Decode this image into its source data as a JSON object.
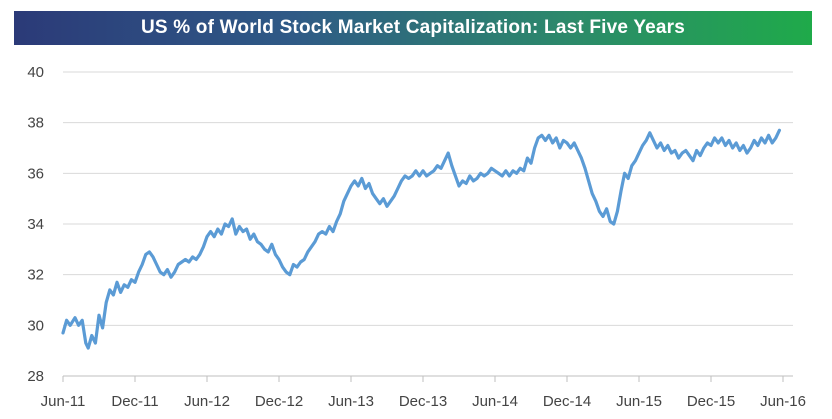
{
  "chart_data": {
    "type": "line",
    "title": "US % of World Stock Market Capitalization: Last Five Years",
    "xlabel": "",
    "ylabel": "",
    "ylim": [
      28,
      40
    ],
    "yticks": [
      28,
      30,
      32,
      34,
      36,
      38,
      40
    ],
    "xticks": [
      "Jun-11",
      "Dec-11",
      "Jun-12",
      "Dec-12",
      "Jun-13",
      "Dec-13",
      "Jun-14",
      "Dec-14",
      "Jun-15",
      "Dec-15",
      "Jun-16"
    ],
    "x_range_months": [
      0,
      60
    ],
    "series": [
      {
        "name": "US % of World Stock Market Capitalization",
        "color": "#5b9bd5",
        "points": [
          [
            0.0,
            29.7
          ],
          [
            0.3,
            30.2
          ],
          [
            0.6,
            30.0
          ],
          [
            1.0,
            30.3
          ],
          [
            1.3,
            30.0
          ],
          [
            1.6,
            30.2
          ],
          [
            1.9,
            29.3
          ],
          [
            2.1,
            29.1
          ],
          [
            2.4,
            29.6
          ],
          [
            2.7,
            29.3
          ],
          [
            3.0,
            30.4
          ],
          [
            3.3,
            29.9
          ],
          [
            3.6,
            30.9
          ],
          [
            3.9,
            31.4
          ],
          [
            4.2,
            31.2
          ],
          [
            4.5,
            31.7
          ],
          [
            4.8,
            31.3
          ],
          [
            5.1,
            31.6
          ],
          [
            5.4,
            31.5
          ],
          [
            5.7,
            31.8
          ],
          [
            6.0,
            31.7
          ],
          [
            6.3,
            32.1
          ],
          [
            6.6,
            32.4
          ],
          [
            6.9,
            32.8
          ],
          [
            7.2,
            32.9
          ],
          [
            7.5,
            32.7
          ],
          [
            7.8,
            32.4
          ],
          [
            8.1,
            32.1
          ],
          [
            8.4,
            32.0
          ],
          [
            8.7,
            32.2
          ],
          [
            9.0,
            31.9
          ],
          [
            9.3,
            32.1
          ],
          [
            9.6,
            32.4
          ],
          [
            9.9,
            32.5
          ],
          [
            10.2,
            32.6
          ],
          [
            10.5,
            32.5
          ],
          [
            10.8,
            32.7
          ],
          [
            11.1,
            32.6
          ],
          [
            11.4,
            32.8
          ],
          [
            11.7,
            33.1
          ],
          [
            12.0,
            33.5
          ],
          [
            12.3,
            33.7
          ],
          [
            12.6,
            33.5
          ],
          [
            12.9,
            33.8
          ],
          [
            13.2,
            33.6
          ],
          [
            13.5,
            34.0
          ],
          [
            13.8,
            33.9
          ],
          [
            14.1,
            34.2
          ],
          [
            14.4,
            33.6
          ],
          [
            14.7,
            33.9
          ],
          [
            15.0,
            33.7
          ],
          [
            15.3,
            33.8
          ],
          [
            15.6,
            33.4
          ],
          [
            15.9,
            33.6
          ],
          [
            16.2,
            33.3
          ],
          [
            16.5,
            33.2
          ],
          [
            16.8,
            33.0
          ],
          [
            17.1,
            32.9
          ],
          [
            17.4,
            33.2
          ],
          [
            17.7,
            32.8
          ],
          [
            18.0,
            32.6
          ],
          [
            18.3,
            32.3
          ],
          [
            18.6,
            32.1
          ],
          [
            18.9,
            32.0
          ],
          [
            19.2,
            32.4
          ],
          [
            19.5,
            32.3
          ],
          [
            19.8,
            32.5
          ],
          [
            20.1,
            32.6
          ],
          [
            20.4,
            32.9
          ],
          [
            20.7,
            33.1
          ],
          [
            21.0,
            33.3
          ],
          [
            21.3,
            33.6
          ],
          [
            21.6,
            33.7
          ],
          [
            21.9,
            33.6
          ],
          [
            22.2,
            33.9
          ],
          [
            22.5,
            33.7
          ],
          [
            22.8,
            34.1
          ],
          [
            23.1,
            34.4
          ],
          [
            23.4,
            34.9
          ],
          [
            23.7,
            35.2
          ],
          [
            24.0,
            35.5
          ],
          [
            24.3,
            35.7
          ],
          [
            24.6,
            35.5
          ],
          [
            24.9,
            35.8
          ],
          [
            25.2,
            35.4
          ],
          [
            25.5,
            35.6
          ],
          [
            25.8,
            35.2
          ],
          [
            26.1,
            35.0
          ],
          [
            26.4,
            34.8
          ],
          [
            26.7,
            35.0
          ],
          [
            27.0,
            34.7
          ],
          [
            27.3,
            34.9
          ],
          [
            27.6,
            35.1
          ],
          [
            27.9,
            35.4
          ],
          [
            28.2,
            35.7
          ],
          [
            28.5,
            35.9
          ],
          [
            28.8,
            35.8
          ],
          [
            29.1,
            35.9
          ],
          [
            29.4,
            36.1
          ],
          [
            29.7,
            35.9
          ],
          [
            30.0,
            36.1
          ],
          [
            30.3,
            35.9
          ],
          [
            30.6,
            36.0
          ],
          [
            30.9,
            36.1
          ],
          [
            31.2,
            36.3
          ],
          [
            31.5,
            36.2
          ],
          [
            31.8,
            36.5
          ],
          [
            32.1,
            36.8
          ],
          [
            32.4,
            36.3
          ],
          [
            32.7,
            35.9
          ],
          [
            33.0,
            35.5
          ],
          [
            33.3,
            35.7
          ],
          [
            33.6,
            35.6
          ],
          [
            33.9,
            35.9
          ],
          [
            34.2,
            35.7
          ],
          [
            34.5,
            35.8
          ],
          [
            34.8,
            36.0
          ],
          [
            35.1,
            35.9
          ],
          [
            35.4,
            36.0
          ],
          [
            35.7,
            36.2
          ],
          [
            36.0,
            36.1
          ],
          [
            36.3,
            36.0
          ],
          [
            36.6,
            35.9
          ],
          [
            36.9,
            36.1
          ],
          [
            37.2,
            35.9
          ],
          [
            37.5,
            36.1
          ],
          [
            37.8,
            36.0
          ],
          [
            38.1,
            36.2
          ],
          [
            38.4,
            36.1
          ],
          [
            38.7,
            36.6
          ],
          [
            39.0,
            36.4
          ],
          [
            39.3,
            37.0
          ],
          [
            39.6,
            37.4
          ],
          [
            39.9,
            37.5
          ],
          [
            40.2,
            37.3
          ],
          [
            40.5,
            37.5
          ],
          [
            40.8,
            37.2
          ],
          [
            41.1,
            37.4
          ],
          [
            41.4,
            37.0
          ],
          [
            41.7,
            37.3
          ],
          [
            42.0,
            37.2
          ],
          [
            42.3,
            37.0
          ],
          [
            42.6,
            37.2
          ],
          [
            42.9,
            36.9
          ],
          [
            43.2,
            36.6
          ],
          [
            43.5,
            36.2
          ],
          [
            43.8,
            35.7
          ],
          [
            44.1,
            35.2
          ],
          [
            44.4,
            34.9
          ],
          [
            44.7,
            34.5
          ],
          [
            45.0,
            34.3
          ],
          [
            45.3,
            34.6
          ],
          [
            45.6,
            34.1
          ],
          [
            45.9,
            34.0
          ],
          [
            46.2,
            34.5
          ],
          [
            46.5,
            35.3
          ],
          [
            46.8,
            36.0
          ],
          [
            47.1,
            35.8
          ],
          [
            47.4,
            36.3
          ],
          [
            47.7,
            36.5
          ],
          [
            48.0,
            36.8
          ],
          [
            48.3,
            37.1
          ],
          [
            48.6,
            37.3
          ],
          [
            48.9,
            37.6
          ],
          [
            49.2,
            37.3
          ],
          [
            49.5,
            37.0
          ],
          [
            49.8,
            37.2
          ],
          [
            50.1,
            36.9
          ],
          [
            50.4,
            37.1
          ],
          [
            50.7,
            36.8
          ],
          [
            51.0,
            36.9
          ],
          [
            51.3,
            36.6
          ],
          [
            51.6,
            36.8
          ],
          [
            51.9,
            36.9
          ],
          [
            52.2,
            36.7
          ],
          [
            52.5,
            36.5
          ],
          [
            52.8,
            36.9
          ],
          [
            53.1,
            36.7
          ],
          [
            53.4,
            37.0
          ],
          [
            53.7,
            37.2
          ],
          [
            54.0,
            37.1
          ],
          [
            54.3,
            37.4
          ],
          [
            54.6,
            37.2
          ],
          [
            54.9,
            37.4
          ],
          [
            55.2,
            37.1
          ],
          [
            55.5,
            37.3
          ],
          [
            55.8,
            37.0
          ],
          [
            56.1,
            37.2
          ],
          [
            56.4,
            36.9
          ],
          [
            56.7,
            37.1
          ],
          [
            57.0,
            36.8
          ],
          [
            57.3,
            37.0
          ],
          [
            57.6,
            37.3
          ],
          [
            57.9,
            37.1
          ],
          [
            58.2,
            37.4
          ],
          [
            58.5,
            37.2
          ],
          [
            58.8,
            37.5
          ],
          [
            59.1,
            37.2
          ],
          [
            59.4,
            37.4
          ],
          [
            59.7,
            37.7
          ]
        ]
      }
    ]
  }
}
